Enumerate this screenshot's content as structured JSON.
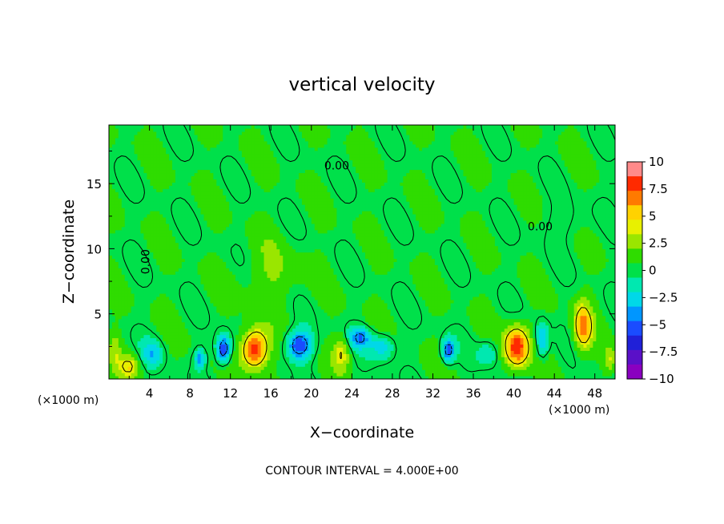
{
  "chart_data": {
    "type": "heatmap",
    "title": "vertical velocity",
    "xlabel": "X−coordinate",
    "ylabel": "Z−coordinate",
    "x_unit_left": "(×1000 m)",
    "x_unit_right": "(×1000 m)",
    "footer": "CONTOUR INTERVAL = 4.000E+00",
    "contour_label": "0.00",
    "xlim": [
      0,
      50
    ],
    "ylim": [
      0,
      19.5
    ],
    "x_ticks": [
      4,
      8,
      12,
      16,
      20,
      24,
      28,
      32,
      36,
      40,
      44,
      48
    ],
    "x_tick_labels": [
      "4",
      "8",
      "12",
      "16",
      "20",
      "24",
      "28",
      "32",
      "36",
      "40",
      "44",
      "48"
    ],
    "y_ticks": [
      5,
      10,
      15
    ],
    "y_tick_labels": [
      "5",
      "10",
      "15"
    ],
    "colorbar": {
      "min": -10,
      "max": 10,
      "ticks": [
        10,
        7.5,
        5,
        2.5,
        0,
        -2.5,
        -5,
        -7.5,
        -10
      ],
      "tick_labels": [
        "10",
        "7.5",
        "5",
        "2.5",
        "0",
        "−2.5",
        "−5",
        "−7.5",
        "−10"
      ],
      "colors": [
        "#ff8a8a",
        "#ff2a00",
        "#ff7a00",
        "#ffd200",
        "#e8f000",
        "#9ae600",
        "#2fdc00",
        "#00e04a",
        "#00e8b0",
        "#00d8e8",
        "#0096ff",
        "#1a4cff",
        "#2020d8",
        "#5a10c8",
        "#8a00c0"
      ]
    },
    "background_value": 0.5,
    "features": [
      {
        "x": 14.4,
        "z": 2.3,
        "value": 8.5,
        "sx": 1.3,
        "sz": 1.5
      },
      {
        "x": 40.3,
        "z": 2.5,
        "value": 8.0,
        "sx": 1.2,
        "sz": 1.6
      },
      {
        "x": 46.8,
        "z": 4.0,
        "value": 6.0,
        "sx": 0.9,
        "sz": 1.8
      },
      {
        "x": 11.3,
        "z": 2.3,
        "value": -7.0,
        "sx": 0.7,
        "sz": 1.1
      },
      {
        "x": 18.8,
        "z": 2.6,
        "value": -6.5,
        "sx": 1.3,
        "sz": 1.1
      },
      {
        "x": 33.5,
        "z": 2.2,
        "value": -6.0,
        "sx": 0.6,
        "sz": 0.9
      },
      {
        "x": 9.0,
        "z": 1.6,
        "value": -4.5,
        "sx": 0.5,
        "sz": 0.7
      },
      {
        "x": 24.8,
        "z": 3.2,
        "value": -4.5,
        "sx": 1.1,
        "sz": 0.8
      },
      {
        "x": 27.0,
        "z": 2.5,
        "value": -3.5,
        "sx": 1.2,
        "sz": 1.0
      },
      {
        "x": 42.8,
        "z": 3.0,
        "value": -4.0,
        "sx": 0.6,
        "sz": 1.4
      },
      {
        "x": 4.3,
        "z": 2.0,
        "value": -3.0,
        "sx": 1.0,
        "sz": 1.0
      },
      {
        "x": 2.0,
        "z": 1.0,
        "value": 3.5,
        "sx": 1.0,
        "sz": 0.9
      },
      {
        "x": 23.0,
        "z": 2.0,
        "value": 3.5,
        "sx": 0.8,
        "sz": 1.3
      },
      {
        "x": 0.6,
        "z": 2.2,
        "value": 2.0,
        "sx": 0.6,
        "sz": 1.4
      },
      {
        "x": 49.5,
        "z": 1.5,
        "value": 3.0,
        "sx": 0.6,
        "sz": 1.0
      },
      {
        "x": 37.5,
        "z": 2.0,
        "value": -2.5,
        "sx": 1.0,
        "sz": 1.0
      },
      {
        "x": 16.0,
        "z": 8.0,
        "value": 1.5,
        "sx": 3.0,
        "sz": 2.5
      },
      {
        "x": 45.0,
        "z": 12.0,
        "value": -1.0,
        "sx": 2.5,
        "sz": 1.5
      }
    ]
  }
}
